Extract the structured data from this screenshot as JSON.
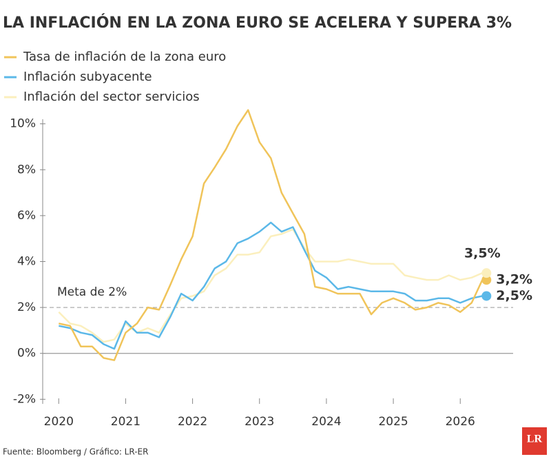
{
  "chart_data": {
    "type": "line",
    "title": "LA INFLACIÓN EN LA ZONA EURO SE ACELERA Y SUPERA 3%",
    "source": "Fuente: Bloomberg / Gráfico: LR-ER",
    "logo": "LR",
    "x": [
      2020,
      2020.17,
      2020.33,
      2020.5,
      2020.67,
      2020.83,
      2021,
      2021.17,
      2021.33,
      2021.5,
      2021.67,
      2021.83,
      2022,
      2022.17,
      2022.33,
      2022.5,
      2022.67,
      2022.83,
      2023,
      2023.17,
      2023.33,
      2023.5,
      2023.67,
      2023.83,
      2024,
      2024.17,
      2024.33,
      2024.5,
      2024.67,
      2024.83,
      2025,
      2025.17,
      2025.33,
      2025.5,
      2025.67,
      2025.83,
      2026,
      2026.17,
      2026.33
    ],
    "series": [
      {
        "name": "Tasa de inflación de la zona euro",
        "color": "#f0c45a",
        "values": [
          1.3,
          1.2,
          0.3,
          0.3,
          -0.2,
          -0.3,
          0.9,
          1.3,
          2.0,
          1.9,
          3.0,
          4.1,
          5.1,
          7.4,
          8.1,
          8.9,
          9.9,
          10.6,
          9.2,
          8.5,
          7.0,
          6.1,
          5.2,
          2.9,
          2.8,
          2.6,
          2.6,
          2.6,
          1.7,
          2.2,
          2.4,
          2.2,
          1.9,
          2.0,
          2.2,
          2.1,
          1.8,
          2.2,
          3.2
        ],
        "value_labels": [
          null,
          null,
          null,
          null,
          null,
          null,
          null,
          null,
          null,
          null,
          null,
          null,
          null,
          null,
          null,
          null,
          null,
          null,
          null,
          null,
          null,
          null,
          null,
          null,
          null,
          null,
          null,
          null,
          null,
          null,
          null,
          null,
          null,
          null,
          null,
          null,
          null,
          null,
          "3,2%"
        ]
      },
      {
        "name": "Inflación subyacente",
        "color": "#5bb8e8",
        "values": [
          1.2,
          1.1,
          0.9,
          0.8,
          0.4,
          0.2,
          1.4,
          0.9,
          0.9,
          0.7,
          1.6,
          2.6,
          2.3,
          2.9,
          3.7,
          4.0,
          4.8,
          5.0,
          5.3,
          5.7,
          5.3,
          5.5,
          4.5,
          3.6,
          3.3,
          2.8,
          2.9,
          2.8,
          2.7,
          2.7,
          2.7,
          2.6,
          2.3,
          2.3,
          2.4,
          2.4,
          2.2,
          2.4,
          2.5
        ],
        "value_labels": [
          null,
          null,
          null,
          null,
          null,
          null,
          null,
          null,
          null,
          null,
          null,
          null,
          null,
          null,
          null,
          null,
          null,
          null,
          null,
          null,
          null,
          null,
          null,
          null,
          null,
          null,
          null,
          null,
          null,
          null,
          null,
          null,
          null,
          null,
          null,
          null,
          null,
          null,
          "2,5%"
        ]
      },
      {
        "name": "Inflación del sector servicios",
        "color": "#fbefbd",
        "values": [
          1.8,
          1.3,
          1.2,
          0.9,
          0.5,
          0.6,
          1.3,
          0.9,
          1.1,
          0.9,
          1.7,
          2.4,
          2.5,
          2.7,
          3.4,
          3.7,
          4.3,
          4.3,
          4.4,
          5.1,
          5.2,
          5.4,
          4.6,
          4.0,
          4.0,
          4.0,
          4.1,
          4.0,
          3.9,
          3.9,
          3.9,
          3.4,
          3.3,
          3.2,
          3.2,
          3.4,
          3.2,
          3.3,
          3.5
        ],
        "value_labels": [
          null,
          null,
          null,
          null,
          null,
          null,
          null,
          null,
          null,
          null,
          null,
          null,
          null,
          null,
          null,
          null,
          null,
          null,
          null,
          null,
          null,
          null,
          null,
          null,
          null,
          null,
          null,
          null,
          null,
          null,
          null,
          null,
          null,
          null,
          null,
          null,
          null,
          null,
          "3,5%"
        ]
      }
    ],
    "reference_line": {
      "value": 2,
      "label": "Meta de 2%"
    },
    "xlim": [
      2019.74,
      2026.79
    ],
    "xticks": [
      2020,
      2021,
      2022,
      2023,
      2024,
      2025,
      2026
    ],
    "ylim": [
      -2.2,
      10.5
    ],
    "yticks": [
      {
        "value": -2,
        "label": "-2%"
      },
      {
        "value": 0,
        "label": "0%"
      },
      {
        "value": 2,
        "label": "2%"
      },
      {
        "value": 4,
        "label": "4%"
      },
      {
        "value": 6,
        "label": "6%"
      },
      {
        "value": 8,
        "label": "8%"
      },
      {
        "value": 10,
        "label": "10%"
      }
    ]
  }
}
